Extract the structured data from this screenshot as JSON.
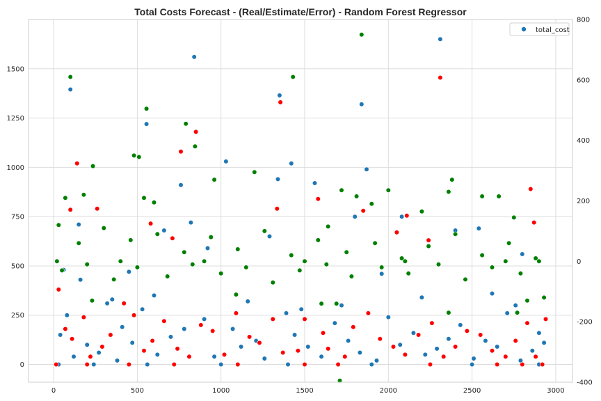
{
  "chart_data": {
    "type": "scatter",
    "title": "Total Costs Forecast - (Real/Estimate/Error) - Random Forest Regressor",
    "xlabel": "",
    "ylabel": "",
    "xlim": [
      -150,
      3100
    ],
    "ylim_left": [
      -90,
      1750
    ],
    "ylim_right": [
      -400,
      800
    ],
    "x_ticks": [
      0,
      500,
      1000,
      1500,
      2000,
      2500,
      3000
    ],
    "y_ticks_left": [
      0,
      250,
      500,
      750,
      1000,
      1250,
      1500
    ],
    "y_ticks_right": [
      -400,
      -200,
      0,
      200,
      400,
      600,
      800
    ],
    "grid": true,
    "legend": {
      "position": "top-right",
      "entries": [
        {
          "label": "total_cost",
          "color": "#1f77b4"
        }
      ]
    },
    "series": [
      {
        "axis": "left",
        "color": "#1f77b4",
        "points": [
          [
            100,
            1395
          ],
          [
            840,
            1560
          ],
          [
            555,
            1220
          ],
          [
            1030,
            1030
          ],
          [
            760,
            910
          ],
          [
            1350,
            1365
          ],
          [
            1420,
            1020
          ],
          [
            1840,
            1320
          ],
          [
            1870,
            990
          ],
          [
            2310,
            1650
          ],
          [
            1340,
            940
          ],
          [
            1560,
            920
          ],
          [
            1800,
            750
          ],
          [
            2400,
            680
          ],
          [
            150,
            710
          ],
          [
            450,
            470
          ],
          [
            1960,
            460
          ],
          [
            2080,
            750
          ],
          [
            820,
            720
          ],
          [
            660,
            680
          ],
          [
            2540,
            690
          ],
          [
            2800,
            560
          ],
          [
            1290,
            650
          ],
          [
            920,
            590
          ],
          [
            60,
            480
          ],
          [
            160,
            430
          ],
          [
            320,
            310
          ],
          [
            40,
            150
          ],
          [
            200,
            100
          ],
          [
            410,
            190
          ],
          [
            530,
            280
          ],
          [
            700,
            140
          ],
          [
            900,
            230
          ],
          [
            1070,
            180
          ],
          [
            1210,
            120
          ],
          [
            1390,
            260
          ],
          [
            1520,
            90
          ],
          [
            1680,
            210
          ],
          [
            1830,
            60
          ],
          [
            2000,
            240
          ],
          [
            2150,
            160
          ],
          [
            2290,
            80
          ],
          [
            2430,
            200
          ],
          [
            2580,
            120
          ],
          [
            2710,
            260
          ],
          [
            2860,
            70
          ],
          [
            2930,
            110
          ],
          [
            120,
            40
          ],
          [
            270,
            60
          ],
          [
            380,
            20
          ],
          [
            470,
            110
          ],
          [
            620,
            50
          ],
          [
            780,
            180
          ],
          [
            960,
            40
          ],
          [
            1120,
            90
          ],
          [
            1260,
            30
          ],
          [
            1440,
            150
          ],
          [
            1600,
            40
          ],
          [
            1760,
            120
          ],
          [
            1930,
            20
          ],
          [
            2070,
            100
          ],
          [
            2220,
            50
          ],
          [
            2360,
            130
          ],
          [
            2510,
            30
          ],
          [
            2650,
            90
          ],
          [
            2790,
            20
          ],
          [
            2900,
            160
          ],
          [
            80,
            250
          ],
          [
            350,
            330
          ],
          [
            600,
            350
          ],
          [
            1160,
            320
          ],
          [
            1480,
            280
          ],
          [
            1720,
            300
          ],
          [
            2200,
            340
          ],
          [
            2620,
            360
          ],
          [
            2760,
            300
          ],
          [
            30,
            0
          ],
          [
            240,
            0
          ],
          [
            560,
            0
          ],
          [
            1000,
            0
          ],
          [
            1400,
            0
          ],
          [
            1900,
            0
          ],
          [
            2500,
            0
          ],
          [
            2900,
            0
          ]
        ]
      },
      {
        "axis": "left",
        "color": "#ff0000",
        "points": [
          [
            2310,
            1455
          ],
          [
            850,
            1180
          ],
          [
            1355,
            1330
          ],
          [
            760,
            1080
          ],
          [
            140,
            1020
          ],
          [
            580,
            715
          ],
          [
            100,
            785
          ],
          [
            1850,
            780
          ],
          [
            2850,
            890
          ],
          [
            1580,
            840
          ],
          [
            1335,
            790
          ],
          [
            260,
            790
          ],
          [
            2110,
            755
          ],
          [
            2870,
            720
          ],
          [
            2050,
            670
          ],
          [
            710,
            640
          ],
          [
            2240,
            630
          ],
          [
            30,
            380
          ],
          [
            70,
            180
          ],
          [
            180,
            240
          ],
          [
            290,
            90
          ],
          [
            420,
            310
          ],
          [
            540,
            70
          ],
          [
            660,
            220
          ],
          [
            810,
            40
          ],
          [
            950,
            170
          ],
          [
            1090,
            260
          ],
          [
            1230,
            110
          ],
          [
            1370,
            60
          ],
          [
            1500,
            230
          ],
          [
            1640,
            80
          ],
          [
            1790,
            190
          ],
          [
            1950,
            130
          ],
          [
            2100,
            50
          ],
          [
            2260,
            210
          ],
          [
            2400,
            90
          ],
          [
            2550,
            150
          ],
          [
            2700,
            40
          ],
          [
            2830,
            210
          ],
          [
            2940,
            230
          ],
          [
            110,
            130
          ],
          [
            220,
            40
          ],
          [
            340,
            150
          ],
          [
            480,
            250
          ],
          [
            590,
            120
          ],
          [
            740,
            80
          ],
          [
            880,
            200
          ],
          [
            1020,
            50
          ],
          [
            1170,
            140
          ],
          [
            1310,
            230
          ],
          [
            1460,
            70
          ],
          [
            1610,
            160
          ],
          [
            1740,
            40
          ],
          [
            1880,
            260
          ],
          [
            2030,
            90
          ],
          [
            2180,
            150
          ],
          [
            2330,
            40
          ],
          [
            2470,
            170
          ],
          [
            2620,
            70
          ],
          [
            2760,
            120
          ],
          [
            2880,
            40
          ],
          [
            200,
            0
          ],
          [
            450,
            0
          ],
          [
            720,
            0
          ],
          [
            1100,
            0
          ],
          [
            1500,
            0
          ],
          [
            1700,
            0
          ],
          [
            2250,
            0
          ],
          [
            2650,
            0
          ],
          [
            2800,
            0
          ],
          [
            15,
            0
          ],
          [
            2920,
            0
          ]
        ]
      },
      {
        "axis": "right",
        "color": "#008000",
        "points": [
          [
            1840,
            750
          ],
          [
            100,
            610
          ],
          [
            1430,
            610
          ],
          [
            555,
            505
          ],
          [
            790,
            455
          ],
          [
            845,
            380
          ],
          [
            480,
            350
          ],
          [
            510,
            345
          ],
          [
            235,
            315
          ],
          [
            1200,
            295
          ],
          [
            960,
            270
          ],
          [
            2380,
            270
          ],
          [
            2360,
            230
          ],
          [
            2000,
            235
          ],
          [
            1720,
            235
          ],
          [
            70,
            210
          ],
          [
            180,
            220
          ],
          [
            540,
            210
          ],
          [
            600,
            195
          ],
          [
            1810,
            215
          ],
          [
            2660,
            215
          ],
          [
            2560,
            215
          ],
          [
            1900,
            190
          ],
          [
            2200,
            165
          ],
          [
            2750,
            145
          ],
          [
            1640,
            115
          ],
          [
            30,
            120
          ],
          [
            150,
            60
          ],
          [
            300,
            110
          ],
          [
            460,
            70
          ],
          [
            620,
            90
          ],
          [
            780,
            30
          ],
          [
            940,
            80
          ],
          [
            1100,
            40
          ],
          [
            1260,
            100
          ],
          [
            1420,
            20
          ],
          [
            1580,
            70
          ],
          [
            1750,
            30
          ],
          [
            1920,
            60
          ],
          [
            2080,
            10
          ],
          [
            2240,
            50
          ],
          [
            2400,
            90
          ],
          [
            2560,
            20
          ],
          [
            2720,
            60
          ],
          [
            2880,
            10
          ],
          [
            50,
            -30
          ],
          [
            200,
            -10
          ],
          [
            360,
            -60
          ],
          [
            500,
            -20
          ],
          [
            680,
            -50
          ],
          [
            830,
            -10
          ],
          [
            1000,
            -40
          ],
          [
            1150,
            -20
          ],
          [
            1310,
            -70
          ],
          [
            1470,
            -30
          ],
          [
            1630,
            -10
          ],
          [
            1780,
            -50
          ],
          [
            1960,
            -20
          ],
          [
            2120,
            -40
          ],
          [
            2300,
            -10
          ],
          [
            2460,
            -60
          ],
          [
            2620,
            -20
          ],
          [
            2790,
            -40
          ],
          [
            2930,
            -120
          ],
          [
            20,
            0
          ],
          [
            400,
            0
          ],
          [
            900,
            0
          ],
          [
            1500,
            0
          ],
          [
            2100,
            0
          ],
          [
            2700,
            0
          ],
          [
            2900,
            0
          ],
          [
            230,
            -130
          ],
          [
            1090,
            -110
          ],
          [
            1600,
            -140
          ],
          [
            1690,
            -140
          ],
          [
            2360,
            -170
          ],
          [
            2830,
            -130
          ],
          [
            2770,
            -170
          ],
          [
            1710,
            -395
          ]
        ]
      }
    ]
  }
}
